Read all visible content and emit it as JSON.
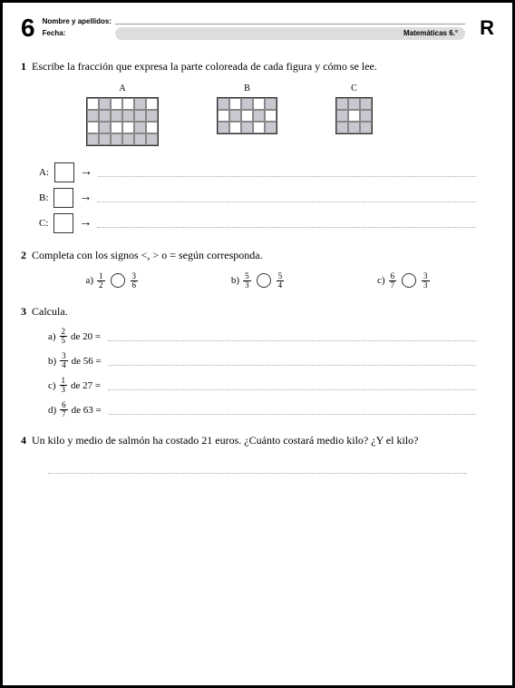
{
  "header": {
    "page_number": "6",
    "name_label": "Nombre y apellidos:",
    "date_label": "Fecha:",
    "subject": "Matemáticas 6.°",
    "letter": "R"
  },
  "ex1": {
    "num": "1",
    "text": "Escribe la fracción que expresa la parte coloreada de cada figura y cómo se lee.",
    "labels": {
      "a": "A",
      "b": "B",
      "c": "C"
    },
    "answers": {
      "a": "A:",
      "b": "B:",
      "c": "C:"
    },
    "arrow": "→",
    "gridA": [
      [
        0,
        1,
        0,
        0,
        1,
        0
      ],
      [
        1,
        1,
        1,
        1,
        1,
        1
      ],
      [
        0,
        1,
        0,
        0,
        1,
        0
      ],
      [
        1,
        1,
        1,
        1,
        1,
        1
      ]
    ],
    "gridB": [
      [
        1,
        0,
        1,
        0,
        1
      ],
      [
        0,
        1,
        0,
        1,
        0
      ],
      [
        1,
        0,
        1,
        0,
        1
      ]
    ],
    "gridC": [
      [
        1,
        1,
        1
      ],
      [
        1,
        0,
        1
      ],
      [
        1,
        1,
        1
      ]
    ]
  },
  "ex2": {
    "num": "2",
    "text": "Completa con los signos <, > o = según corresponda.",
    "items": [
      {
        "l": "a)",
        "n1": "1",
        "d1": "2",
        "n2": "3",
        "d2": "6"
      },
      {
        "l": "b)",
        "n1": "5",
        "d1": "3",
        "n2": "5",
        "d2": "4"
      },
      {
        "l": "c)",
        "n1": "6",
        "d1": "7",
        "n2": "3",
        "d2": "3"
      }
    ]
  },
  "ex3": {
    "num": "3",
    "text": "Calcula.",
    "items": [
      {
        "l": "a)",
        "n": "2",
        "d": "5",
        "rest": "de 20 ="
      },
      {
        "l": "b)",
        "n": "3",
        "d": "4",
        "rest": "de 56 ="
      },
      {
        "l": "c)",
        "n": "1",
        "d": "3",
        "rest": "de 27 ="
      },
      {
        "l": "d)",
        "n": "6",
        "d": "7",
        "rest": "de 63 ="
      }
    ]
  },
  "ex4": {
    "num": "4",
    "text": "Un kilo y medio de salmón ha costado 21 euros. ¿Cuánto costará medio kilo? ¿Y el kilo?"
  },
  "colors": {
    "filled": "#c8c8d0",
    "pill": "#dddddd",
    "border": "#333333",
    "dots": "#aaaaaa"
  }
}
